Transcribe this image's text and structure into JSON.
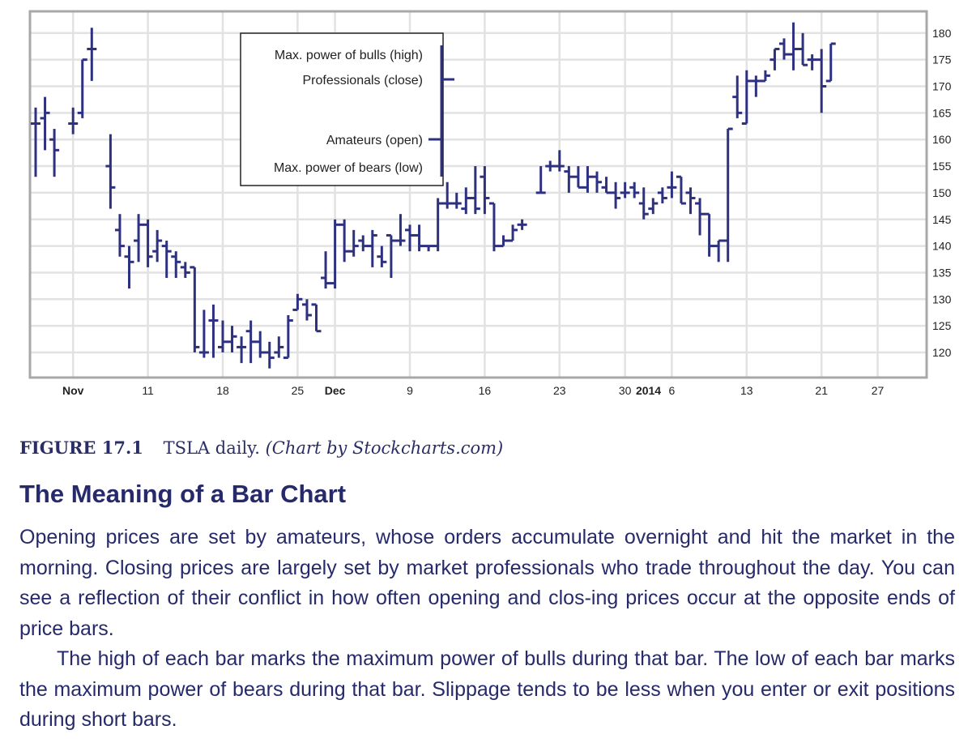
{
  "chart_data": {
    "type": "ohlc",
    "title": "",
    "ylim": [
      115,
      183
    ],
    "y_ticks": [
      120,
      125,
      130,
      135,
      140,
      145,
      150,
      155,
      160,
      165,
      170,
      175,
      180
    ],
    "x_labels": [
      {
        "label": "Nov",
        "bold": true,
        "index": 4
      },
      {
        "label": "11",
        "bold": false,
        "index": 12
      },
      {
        "label": "18",
        "bold": false,
        "index": 20
      },
      {
        "label": "25",
        "bold": false,
        "index": 28
      },
      {
        "label": "Dec",
        "bold": true,
        "index": 32
      },
      {
        "label": "9",
        "bold": false,
        "index": 40
      },
      {
        "label": "16",
        "bold": false,
        "index": 48
      },
      {
        "label": "23",
        "bold": false,
        "index": 56
      },
      {
        "label": "30",
        "bold": false,
        "index": 63
      },
      {
        "label": "2014",
        "bold": true,
        "index": 65.5
      },
      {
        "label": "6",
        "bold": false,
        "index": 68
      },
      {
        "label": "13",
        "bold": false,
        "index": 76
      },
      {
        "label": "21",
        "bold": false,
        "index": 84
      },
      {
        "label": "27",
        "bold": false,
        "index": 90
      }
    ],
    "bars": [
      {
        "i": 0,
        "o": 163,
        "h": 166,
        "l": 153,
        "c": 163
      },
      {
        "i": 1,
        "o": 164,
        "h": 168,
        "l": 158,
        "c": 165
      },
      {
        "i": 2,
        "o": 160,
        "h": 162,
        "l": 153,
        "c": 158
      },
      {
        "i": 4,
        "o": 163,
        "h": 166,
        "l": 161,
        "c": 163
      },
      {
        "i": 5,
        "o": 165,
        "h": 175,
        "l": 164,
        "c": 175
      },
      {
        "i": 6,
        "o": 177,
        "h": 181,
        "l": 171,
        "c": 177
      },
      {
        "i": 8,
        "o": 155,
        "h": 161,
        "l": 147,
        "c": 151
      },
      {
        "i": 9,
        "o": 143,
        "h": 146,
        "l": 138,
        "c": 140
      },
      {
        "i": 10,
        "o": 138,
        "h": 140,
        "l": 132,
        "c": 137
      },
      {
        "i": 11,
        "o": 141,
        "h": 146,
        "l": 137,
        "c": 144
      },
      {
        "i": 12,
        "o": 144,
        "h": 145,
        "l": 136,
        "c": 138
      },
      {
        "i": 13,
        "o": 139,
        "h": 143,
        "l": 137,
        "c": 141
      },
      {
        "i": 14,
        "o": 140,
        "h": 141,
        "l": 134,
        "c": 139
      },
      {
        "i": 15,
        "o": 138,
        "h": 139,
        "l": 134,
        "c": 137
      },
      {
        "i": 16,
        "o": 136,
        "h": 137,
        "l": 134,
        "c": 135
      },
      {
        "i": 17,
        "o": 136,
        "h": 136,
        "l": 120,
        "c": 121
      },
      {
        "i": 18,
        "o": 120,
        "h": 128,
        "l": 119,
        "c": 120
      },
      {
        "i": 19,
        "o": 126,
        "h": 129,
        "l": 119,
        "c": 126
      },
      {
        "i": 20,
        "o": 121,
        "h": 126,
        "l": 120,
        "c": 122
      },
      {
        "i": 21,
        "o": 122,
        "h": 125,
        "l": 120,
        "c": 123
      },
      {
        "i": 22,
        "o": 121,
        "h": 123,
        "l": 118,
        "c": 121
      },
      {
        "i": 23,
        "o": 124,
        "h": 126,
        "l": 118,
        "c": 122
      },
      {
        "i": 24,
        "o": 122,
        "h": 124,
        "l": 119,
        "c": 120
      },
      {
        "i": 25,
        "o": 120,
        "h": 122,
        "l": 117,
        "c": 119
      },
      {
        "i": 26,
        "o": 120,
        "h": 123,
        "l": 119,
        "c": 121
      },
      {
        "i": 27,
        "o": 119,
        "h": 127,
        "l": 119,
        "c": 126
      },
      {
        "i": 28,
        "o": 128,
        "h": 131,
        "l": 128,
        "c": 130
      },
      {
        "i": 29,
        "o": 129,
        "h": 130,
        "l": 126,
        "c": 127
      },
      {
        "i": 30,
        "o": 129,
        "h": 129,
        "l": 124,
        "c": 124
      },
      {
        "i": 31,
        "o": 134,
        "h": 139,
        "l": 132,
        "c": 133
      },
      {
        "i": 32,
        "o": 133,
        "h": 145,
        "l": 132,
        "c": 144
      },
      {
        "i": 33,
        "o": 144,
        "h": 145,
        "l": 137,
        "c": 139
      },
      {
        "i": 34,
        "o": 139,
        "h": 143,
        "l": 138,
        "c": 140
      },
      {
        "i": 35,
        "o": 141,
        "h": 142,
        "l": 139,
        "c": 140
      },
      {
        "i": 36,
        "o": 140,
        "h": 143,
        "l": 136,
        "c": 142
      },
      {
        "i": 37,
        "o": 138,
        "h": 140,
        "l": 136,
        "c": 137
      },
      {
        "i": 38,
        "o": 142,
        "h": 142,
        "l": 134,
        "c": 141
      },
      {
        "i": 39,
        "o": 141,
        "h": 146,
        "l": 140,
        "c": 141
      },
      {
        "i": 40,
        "o": 143,
        "h": 144,
        "l": 139,
        "c": 142
      },
      {
        "i": 41,
        "o": 142,
        "h": 144,
        "l": 139,
        "c": 140
      },
      {
        "i": 42,
        "o": 140,
        "h": 140,
        "l": 139,
        "c": 140
      },
      {
        "i": 43,
        "o": 140,
        "h": 149,
        "l": 139,
        "c": 148
      },
      {
        "i": 44,
        "o": 148,
        "h": 152,
        "l": 147,
        "c": 148
      },
      {
        "i": 45,
        "o": 148,
        "h": 150,
        "l": 147,
        "c": 148
      },
      {
        "i": 46,
        "o": 147,
        "h": 151,
        "l": 146,
        "c": 149
      },
      {
        "i": 47,
        "o": 149,
        "h": 155,
        "l": 146,
        "c": 147
      },
      {
        "i": 48,
        "o": 153,
        "h": 155,
        "l": 146,
        "c": 149
      },
      {
        "i": 49,
        "o": 148,
        "h": 148,
        "l": 139,
        "c": 140
      },
      {
        "i": 50,
        "o": 140,
        "h": 142,
        "l": 140,
        "c": 141
      },
      {
        "i": 51,
        "o": 141,
        "h": 144,
        "l": 141,
        "c": 143
      },
      {
        "i": 52,
        "o": 144,
        "h": 145,
        "l": 143,
        "c": 144
      },
      {
        "i": 54,
        "o": 150,
        "h": 155,
        "l": 150,
        "c": 150
      },
      {
        "i": 55,
        "o": 155,
        "h": 156,
        "l": 154,
        "c": 155
      },
      {
        "i": 56,
        "o": 155,
        "h": 158,
        "l": 154,
        "c": 155
      },
      {
        "i": 57,
        "o": 154,
        "h": 155,
        "l": 150,
        "c": 153
      },
      {
        "i": 58,
        "o": 153,
        "h": 155,
        "l": 151,
        "c": 151
      },
      {
        "i": 59,
        "o": 151,
        "h": 155,
        "l": 150,
        "c": 153
      },
      {
        "i": 60,
        "o": 153,
        "h": 154,
        "l": 150,
        "c": 152
      },
      {
        "i": 61,
        "o": 151,
        "h": 153,
        "l": 150,
        "c": 150
      },
      {
        "i": 62,
        "o": 150,
        "h": 152,
        "l": 147,
        "c": 149
      },
      {
        "i": 63,
        "o": 150,
        "h": 152,
        "l": 149,
        "c": 150
      },
      {
        "i": 64,
        "o": 151,
        "h": 152,
        "l": 149,
        "c": 150
      },
      {
        "i": 65,
        "o": 148,
        "h": 151,
        "l": 145,
        "c": 146
      },
      {
        "i": 66,
        "o": 147,
        "h": 149,
        "l": 146,
        "c": 148
      },
      {
        "i": 67,
        "o": 150,
        "h": 151,
        "l": 148,
        "c": 149
      },
      {
        "i": 68,
        "o": 151,
        "h": 154,
        "l": 149,
        "c": 151
      },
      {
        "i": 69,
        "o": 153,
        "h": 153,
        "l": 148,
        "c": 148
      },
      {
        "i": 70,
        "o": 150,
        "h": 151,
        "l": 146,
        "c": 149
      },
      {
        "i": 71,
        "o": 148,
        "h": 149,
        "l": 142,
        "c": 146
      },
      {
        "i": 72,
        "o": 146,
        "h": 146,
        "l": 138,
        "c": 140
      },
      {
        "i": 73,
        "o": 140,
        "h": 141,
        "l": 137,
        "c": 141
      },
      {
        "i": 74,
        "o": 141,
        "h": 162,
        "l": 137,
        "c": 162
      },
      {
        "i": 75,
        "o": 168,
        "h": 172,
        "l": 164,
        "c": 165
      },
      {
        "i": 76,
        "o": 163,
        "h": 173,
        "l": 163,
        "c": 171
      },
      {
        "i": 77,
        "o": 171,
        "h": 172,
        "l": 168,
        "c": 171
      },
      {
        "i": 78,
        "o": 171,
        "h": 173,
        "l": 171,
        "c": 172
      },
      {
        "i": 79,
        "o": 175,
        "h": 177,
        "l": 173,
        "c": 177
      },
      {
        "i": 80,
        "o": 178,
        "h": 179,
        "l": 175,
        "c": 176
      },
      {
        "i": 81,
        "o": 176,
        "h": 182,
        "l": 173,
        "c": 177
      },
      {
        "i": 82,
        "o": 177,
        "h": 180,
        "l": 174,
        "c": 174
      },
      {
        "i": 83,
        "o": 175,
        "h": 176,
        "l": 173,
        "c": 175
      },
      {
        "i": 84,
        "o": 175,
        "h": 177,
        "l": 165,
        "c": 170
      },
      {
        "i": 85,
        "o": 171,
        "h": 178,
        "l": 171,
        "c": 178
      }
    ]
  },
  "legend": {
    "high_label": "Max. power of bulls (high)",
    "close_label": "Professionals (close)",
    "open_label": "Amateurs (open)",
    "low_label": "Max. power of bears (low)"
  },
  "caption": {
    "figure_number": "FIGURE 17.1",
    "figure_title": "TSLA daily.",
    "figure_credit": "(Chart by Stockcharts.com)"
  },
  "section": {
    "title": "The Meaning of a Bar Chart",
    "paragraph1": "Opening prices are set by amateurs, whose orders accumulate overnight and hit the market in the morning. Closing prices are largely set by market professionals who trade throughout the day. You can see a reflection of their conflict in how often opening and clos-ing prices occur at the opposite ends of price bars.",
    "paragraph2": "The high of each bar marks the maximum power of bulls during that bar. The low of each bar marks the maximum power of bears during that bar. Slippage tends to be less when you enter or exit positions during short bars."
  },
  "colors": {
    "bar": "#2e3180",
    "grid": "#e2e2e2",
    "frame": "#a8a8a8",
    "text": "#262a6a"
  }
}
